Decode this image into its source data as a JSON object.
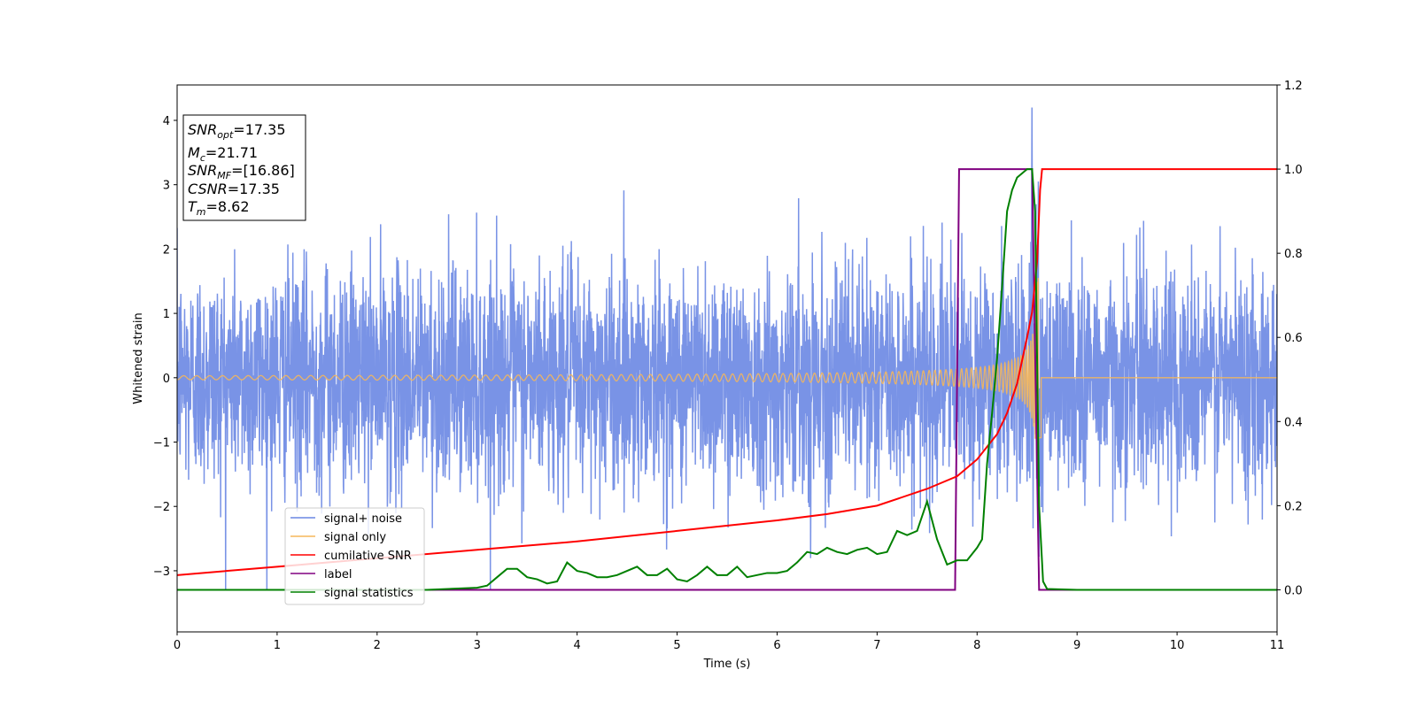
{
  "chart_data": {
    "type": "line",
    "xlabel": "Time (s)",
    "ylabel_left": "Whitened strain",
    "ylabel_right": "",
    "xlim": [
      0,
      11
    ],
    "ylim_left": [
      -3.95,
      4.55
    ],
    "ylim_right": [
      -0.1,
      1.2
    ],
    "x_ticks": [
      0,
      1,
      2,
      3,
      4,
      5,
      6,
      7,
      8,
      9,
      10,
      11
    ],
    "y_ticks_left": [
      -3,
      -2,
      -1,
      0,
      1,
      2,
      3,
      4
    ],
    "y_ticks_right": [
      0.0,
      0.2,
      0.4,
      0.6,
      0.8,
      1.0,
      1.2
    ],
    "grid": false,
    "legend_position": "lower-left",
    "colors": {
      "signal_noise": "#6a87e3",
      "signal_only": "#f5b75a",
      "cumulative_snr": "#ff0000",
      "label": "#800080",
      "signal_statistics": "#008000"
    },
    "stats_box": [
      {
        "name": "SNR",
        "sub": "opt",
        "value": "=17.35"
      },
      {
        "name": "M",
        "sub": "c",
        "value": "=21.71"
      },
      {
        "name": "SNR",
        "sub": "MF",
        "value": "=[16.86]"
      },
      {
        "name": "CSNR",
        "sub": "",
        "value": "=17.35"
      },
      {
        "name": "T",
        "sub": "m",
        "value": "=8.62"
      }
    ],
    "series": [
      {
        "name": "signal+ noise",
        "axis": "left",
        "style": "noise",
        "noise_std": 0.85,
        "envelope_peak_abs": 4.2,
        "peak_time": 8.62,
        "x_range": [
          0,
          11
        ]
      },
      {
        "name": "signal only",
        "axis": "left",
        "style": "chirp",
        "start_amplitude": 0.03,
        "peak_amplitude": 1.7,
        "merger_time": 8.62,
        "x_range": [
          0,
          11
        ]
      },
      {
        "name": "cumilative SNR",
        "axis": "right",
        "x": [
          0,
          1,
          2,
          3,
          4,
          5,
          6,
          6.5,
          7,
          7.5,
          7.8,
          8.0,
          8.2,
          8.3,
          8.4,
          8.5,
          8.55,
          8.6,
          8.63,
          8.65,
          11
        ],
        "y": [
          0.035,
          0.055,
          0.075,
          0.095,
          0.115,
          0.14,
          0.165,
          0.18,
          0.2,
          0.24,
          0.27,
          0.31,
          0.37,
          0.42,
          0.49,
          0.6,
          0.66,
          0.78,
          0.95,
          1.0,
          1.0
        ]
      },
      {
        "name": "label",
        "axis": "right",
        "x": [
          0,
          7.78,
          7.82,
          8.55,
          8.62,
          11
        ],
        "y": [
          0,
          0,
          1,
          1,
          0,
          0
        ]
      },
      {
        "name": "signal statistics",
        "axis": "right",
        "x": [
          0,
          0.5,
          1,
          1.5,
          2,
          2.5,
          3,
          3.1,
          3.2,
          3.3,
          3.4,
          3.5,
          3.6,
          3.7,
          3.8,
          3.9,
          4.0,
          4.1,
          4.2,
          4.3,
          4.4,
          4.5,
          4.6,
          4.7,
          4.8,
          4.9,
          5.0,
          5.1,
          5.2,
          5.3,
          5.4,
          5.5,
          5.6,
          5.7,
          5.8,
          5.9,
          6.0,
          6.1,
          6.2,
          6.3,
          6.4,
          6.5,
          6.6,
          6.7,
          6.8,
          6.9,
          7.0,
          7.1,
          7.2,
          7.3,
          7.4,
          7.5,
          7.6,
          7.7,
          7.8,
          7.9,
          8.0,
          8.05,
          8.1,
          8.15,
          8.2,
          8.25,
          8.3,
          8.35,
          8.4,
          8.45,
          8.5,
          8.55,
          8.58,
          8.62,
          8.66,
          8.7,
          9,
          10,
          11
        ],
        "y": [
          0.0,
          0.0,
          0.0,
          0.0,
          0.0,
          0.0,
          0.005,
          0.01,
          0.03,
          0.05,
          0.05,
          0.03,
          0.025,
          0.015,
          0.02,
          0.065,
          0.045,
          0.04,
          0.03,
          0.03,
          0.035,
          0.045,
          0.055,
          0.035,
          0.035,
          0.05,
          0.025,
          0.02,
          0.035,
          0.055,
          0.035,
          0.035,
          0.055,
          0.03,
          0.035,
          0.04,
          0.04,
          0.045,
          0.065,
          0.09,
          0.085,
          0.1,
          0.09,
          0.085,
          0.095,
          0.1,
          0.085,
          0.09,
          0.14,
          0.13,
          0.14,
          0.21,
          0.12,
          0.06,
          0.07,
          0.07,
          0.1,
          0.12,
          0.3,
          0.42,
          0.55,
          0.72,
          0.9,
          0.95,
          0.98,
          0.99,
          1.0,
          1.0,
          0.9,
          0.2,
          0.02,
          0.002,
          0.0,
          0.0,
          0.0
        ]
      }
    ]
  }
}
